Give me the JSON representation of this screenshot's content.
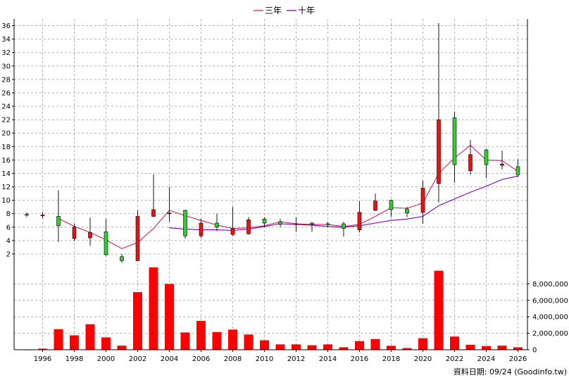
{
  "legend": {
    "ma3_label": "三年",
    "ma10_label": "十年"
  },
  "source_note": "資料日期: 09/24 (Goodinfo.tw)",
  "colors": {
    "up": "#33cc33",
    "down": "#ee1111",
    "ma3": "#cc2266",
    "ma10": "#7700bb",
    "volume": "#ff0000",
    "grid": "#b0b0b0"
  },
  "chart_data": [
    {
      "type": "candlestick",
      "grid": true,
      "legend_position": "top-center",
      "ylim": [
        0,
        37
      ],
      "yticks": [
        2,
        4,
        6,
        8,
        10,
        12,
        14,
        16,
        18,
        20,
        22,
        24,
        26,
        28,
        30,
        32,
        34,
        36
      ],
      "xticks": [
        "1996",
        "1998",
        "2000",
        "2002",
        "2004",
        "2006",
        "2008",
        "2010",
        "2012",
        "2014",
        "2016",
        "2018",
        "2020",
        "2022",
        "2024",
        "2026"
      ],
      "candles": [
        {
          "year": 1995,
          "open": 7.9,
          "high": 8.2,
          "low": 7.5,
          "close": 7.9
        },
        {
          "year": 1996,
          "open": 7.8,
          "high": 8.3,
          "low": 7.3,
          "close": 7.7
        },
        {
          "year": 1997,
          "open": 6.2,
          "high": 11.5,
          "low": 3.8,
          "close": 7.6
        },
        {
          "year": 1998,
          "open": 6.0,
          "high": 6.5,
          "low": 3.9,
          "close": 4.3
        },
        {
          "year": 1999,
          "open": 5.2,
          "high": 7.4,
          "low": 3.2,
          "close": 4.4
        },
        {
          "year": 2000,
          "open": 1.9,
          "high": 7.2,
          "low": 1.7,
          "close": 5.3
        },
        {
          "year": 2001,
          "open": 1.0,
          "high": 2.0,
          "low": 0.7,
          "close": 1.6
        },
        {
          "year": 2002,
          "open": 7.6,
          "high": 8.5,
          "low": 1.0,
          "close": 1.0
        },
        {
          "year": 2003,
          "open": 8.6,
          "high": 13.9,
          "low": 7.5,
          "close": 7.6
        },
        {
          "year": 2004,
          "open": 8.1,
          "high": 12.0,
          "low": 6.8,
          "close": 8.0
        },
        {
          "year": 2005,
          "open": 4.7,
          "high": 8.6,
          "low": 4.3,
          "close": 8.5
        },
        {
          "year": 2006,
          "open": 6.6,
          "high": 7.2,
          "low": 4.4,
          "close": 4.7
        },
        {
          "year": 2007,
          "open": 6.0,
          "high": 8.0,
          "low": 5.4,
          "close": 6.6
        },
        {
          "year": 2008,
          "open": 5.8,
          "high": 9.0,
          "low": 4.7,
          "close": 4.9
        },
        {
          "year": 2009,
          "open": 7.1,
          "high": 7.5,
          "low": 4.9,
          "close": 5.0
        },
        {
          "year": 2010,
          "open": 6.6,
          "high": 7.5,
          "low": 6.0,
          "close": 7.2
        },
        {
          "year": 2011,
          "open": 6.4,
          "high": 7.2,
          "low": 6.0,
          "close": 6.8
        },
        {
          "year": 2012,
          "open": 6.5,
          "high": 7.5,
          "low": 5.3,
          "close": 6.4
        },
        {
          "year": 2013,
          "open": 6.4,
          "high": 6.8,
          "low": 5.3,
          "close": 6.6
        },
        {
          "year": 2014,
          "open": 6.4,
          "high": 6.8,
          "low": 6.0,
          "close": 6.5
        },
        {
          "year": 2015,
          "open": 5.8,
          "high": 6.8,
          "low": 4.6,
          "close": 6.5
        },
        {
          "year": 2016,
          "open": 8.2,
          "high": 9.9,
          "low": 5.2,
          "close": 5.6
        },
        {
          "year": 2017,
          "open": 9.9,
          "high": 11.0,
          "low": 8.4,
          "close": 8.5
        },
        {
          "year": 2018,
          "open": 8.6,
          "high": 10.1,
          "low": 7.5,
          "close": 10.0
        },
        {
          "year": 2019,
          "open": 8.1,
          "high": 9.0,
          "low": 7.5,
          "close": 8.7
        },
        {
          "year": 2020,
          "open": 11.8,
          "high": 12.9,
          "low": 6.5,
          "close": 8.2
        },
        {
          "year": 2021,
          "open": 22.0,
          "high": 36.4,
          "low": 9.7,
          "close": 12.5
        },
        {
          "year": 2022,
          "open": 15.3,
          "high": 23.2,
          "low": 12.6,
          "close": 22.3
        },
        {
          "year": 2023,
          "open": 16.8,
          "high": 19.0,
          "low": 13.8,
          "close": 14.4
        },
        {
          "year": 2024,
          "open": 15.3,
          "high": 17.7,
          "low": 13.3,
          "close": 17.5
        },
        {
          "year": 2025,
          "open": 15.4,
          "high": 17.4,
          "low": 14.6,
          "close": 15.2
        },
        {
          "year": 2026,
          "open": 13.8,
          "high": 16.1,
          "low": 13.4,
          "close": 15.0
        }
      ],
      "series": [
        {
          "name": "三年",
          "points": [
            {
              "x": 1997,
              "y": 7.3
            },
            {
              "x": 1998,
              "y": 6.1
            },
            {
              "x": 1999,
              "y": 5.2
            },
            {
              "x": 2000,
              "y": 4.1
            },
            {
              "x": 2001,
              "y": 2.8
            },
            {
              "x": 2002,
              "y": 3.7
            },
            {
              "x": 2003,
              "y": 5.8
            },
            {
              "x": 2004,
              "y": 8.5
            },
            {
              "x": 2005,
              "y": 7.7
            },
            {
              "x": 2006,
              "y": 7.0
            },
            {
              "x": 2007,
              "y": 6.3
            },
            {
              "x": 2008,
              "y": 5.8
            },
            {
              "x": 2009,
              "y": 5.9
            },
            {
              "x": 2010,
              "y": 6.2
            },
            {
              "x": 2011,
              "y": 6.8
            },
            {
              "x": 2012,
              "y": 6.5
            },
            {
              "x": 2013,
              "y": 6.4
            },
            {
              "x": 2014,
              "y": 6.4
            },
            {
              "x": 2015,
              "y": 6.1
            },
            {
              "x": 2016,
              "y": 6.4
            },
            {
              "x": 2017,
              "y": 7.6
            },
            {
              "x": 2018,
              "y": 8.9
            },
            {
              "x": 2019,
              "y": 8.8
            },
            {
              "x": 2020,
              "y": 9.6
            },
            {
              "x": 2021,
              "y": 14.0
            },
            {
              "x": 2022,
              "y": 16.3
            },
            {
              "x": 2023,
              "y": 18.2
            },
            {
              "x": 2024,
              "y": 16.0
            },
            {
              "x": 2025,
              "y": 15.9
            },
            {
              "x": 2026,
              "y": 14.3
            }
          ]
        },
        {
          "name": "十年",
          "points": [
            {
              "x": 2004,
              "y": 5.9
            },
            {
              "x": 2005,
              "y": 5.7
            },
            {
              "x": 2006,
              "y": 5.6
            },
            {
              "x": 2007,
              "y": 5.6
            },
            {
              "x": 2008,
              "y": 5.5
            },
            {
              "x": 2009,
              "y": 5.7
            },
            {
              "x": 2010,
              "y": 6.1
            },
            {
              "x": 2011,
              "y": 6.5
            },
            {
              "x": 2012,
              "y": 6.4
            },
            {
              "x": 2013,
              "y": 6.3
            },
            {
              "x": 2014,
              "y": 6.1
            },
            {
              "x": 2015,
              "y": 6.0
            },
            {
              "x": 2016,
              "y": 6.2
            },
            {
              "x": 2017,
              "y": 6.6
            },
            {
              "x": 2018,
              "y": 7.0
            },
            {
              "x": 2019,
              "y": 7.2
            },
            {
              "x": 2020,
              "y": 7.6
            },
            {
              "x": 2021,
              "y": 9.2
            },
            {
              "x": 2022,
              "y": 10.2
            },
            {
              "x": 2023,
              "y": 11.2
            },
            {
              "x": 2024,
              "y": 12.1
            },
            {
              "x": 2025,
              "y": 13.1
            },
            {
              "x": 2026,
              "y": 13.6
            }
          ]
        }
      ]
    },
    {
      "type": "bar",
      "grid": true,
      "ylim": [
        0,
        10000000
      ],
      "yticks": [
        0,
        2000000,
        4000000,
        6000000,
        8000000
      ],
      "ytick_labels": [
        "0",
        "2,000,000",
        "4,000,000",
        "6,000,000",
        "8,000,000"
      ],
      "categories": [
        1995,
        1996,
        1997,
        1998,
        1999,
        2000,
        2001,
        2002,
        2003,
        2004,
        2005,
        2006,
        2007,
        2008,
        2009,
        2010,
        2011,
        2012,
        2013,
        2014,
        2015,
        2016,
        2017,
        2018,
        2019,
        2020,
        2021,
        2022,
        2023,
        2024,
        2025,
        2026
      ],
      "values": [
        20000,
        130000,
        2500000,
        1750000,
        3100000,
        1500000,
        500000,
        7000000,
        10000000,
        8000000,
        2100000,
        3500000,
        2150000,
        2450000,
        1850000,
        1150000,
        650000,
        650000,
        550000,
        650000,
        300000,
        1050000,
        1300000,
        480000,
        200000,
        1400000,
        9600000,
        1600000,
        600000,
        450000,
        500000,
        300000
      ]
    }
  ]
}
